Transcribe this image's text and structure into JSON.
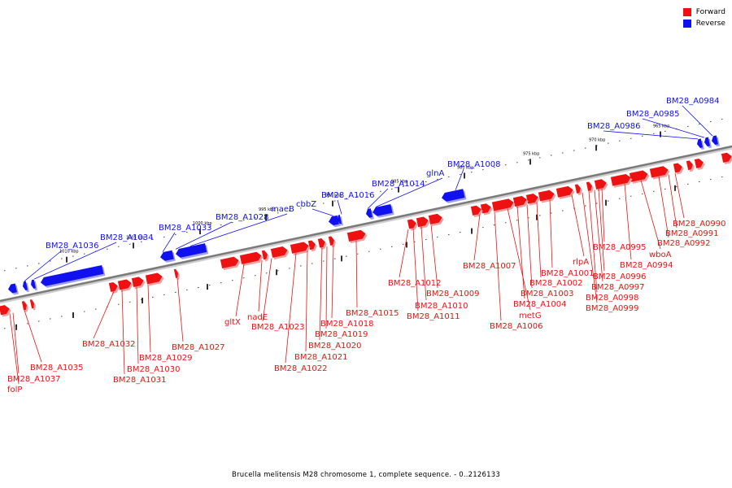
{
  "legend": {
    "forward_label": "Forward",
    "reverse_label": "Reverse",
    "forward_color": "#ee1111",
    "reverse_color": "#1111ee"
  },
  "caption": "Brucella melitensis M28 chromosome 1, complete sequence. - 0..2126133",
  "ticks": [
    "965 kbp",
    "970 kbp",
    "975 kbp",
    "980 kbp",
    "985 kbp",
    "990 kbp",
    "995 kbp",
    "1000 kbp",
    "1005 kbp",
    "1010 kbp"
  ],
  "genes_reverse": [
    "BM28_A0984",
    "BM28_A0985",
    "BM28_A0986",
    "BM28_A1008",
    "glnA",
    "BM28_A1014",
    "BM28_A1016",
    "cbbZ",
    "maeB",
    "BM28_A1028",
    "BM28_A1033",
    "BM28_A1034",
    "BM28_A1036"
  ],
  "genes_forward": [
    "BM28_A0990",
    "BM28_A0991",
    "BM28_A0992",
    "wboA",
    "BM28_A0994",
    "BM28_A0995",
    "BM28_A0996",
    "BM28_A0997",
    "BM28_A0998",
    "BM28_A0999",
    "rlpA",
    "BM28_A1001",
    "BM28_A1002",
    "BM28_A1003",
    "BM28_A1004",
    "metG",
    "BM28_A1006",
    "BM28_A1007",
    "BM28_A1009",
    "BM28_A1010",
    "BM28_A1011",
    "BM28_A1012",
    "BM28_A1015",
    "BM28_A1018",
    "BM28_A1019",
    "BM28_A1020",
    "BM28_A1021",
    "BM28_A1022",
    "BM28_A1023",
    "nadE",
    "gltX",
    "BM28_A1027",
    "BM28_A1029",
    "BM28_A1030",
    "BM28_A1031",
    "BM28_A1032",
    "BM28_A1035",
    "BM28_A1037",
    "folP"
  ]
}
